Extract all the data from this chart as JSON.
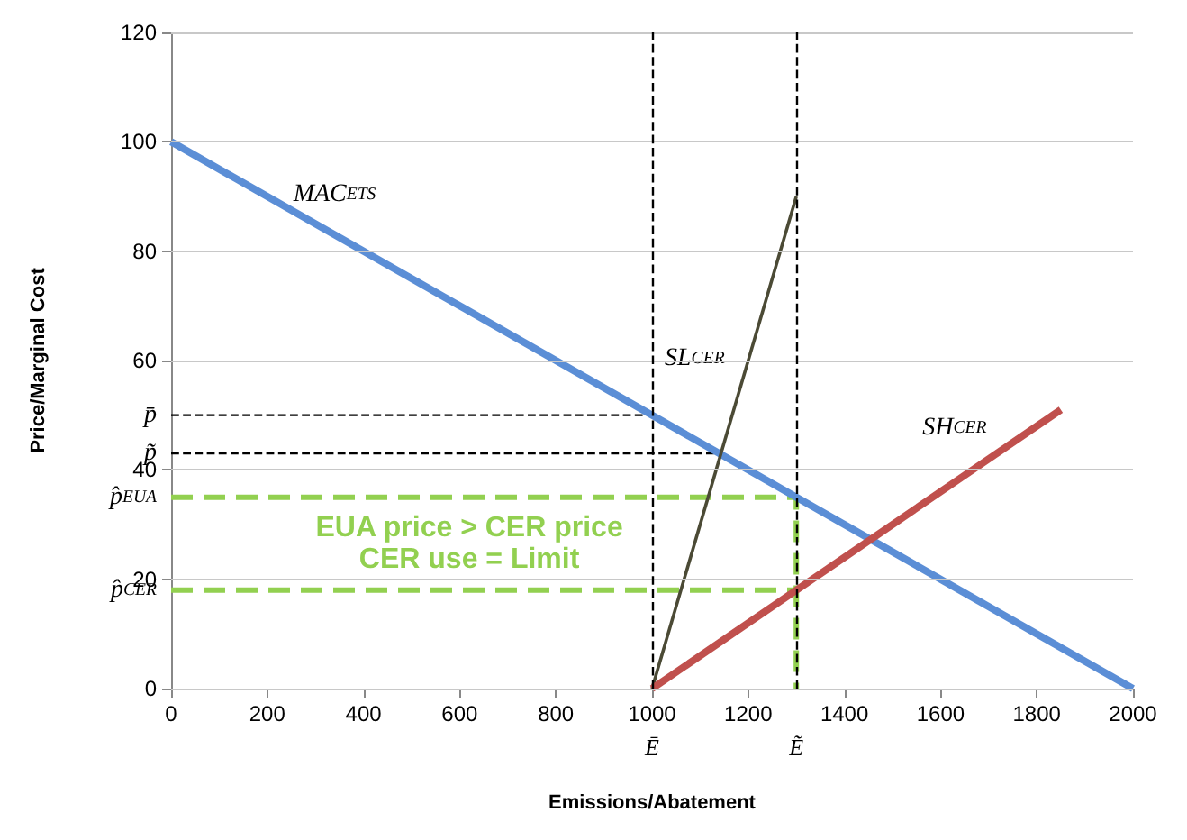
{
  "chart_data": {
    "type": "line",
    "xlabel": "Emissions/Abatement",
    "ylabel": "Price/Marginal Cost",
    "xlim": [
      0,
      2000
    ],
    "xticks": [
      0,
      200,
      400,
      600,
      800,
      1000,
      1200,
      1400,
      1600,
      1800,
      2000
    ],
    "ylim": [
      0,
      120
    ],
    "yticks": [
      0,
      20,
      40,
      60,
      80,
      100,
      120,
      {
        "value": 50,
        "label": "p̄"
      },
      {
        "value": 43,
        "label": "p̃"
      },
      {
        "value": 35,
        "label": "p̂$_{EUA}$"
      },
      {
        "value": 18,
        "label": "p̂$_{CER}$"
      }
    ],
    "grid": "y",
    "legend": false,
    "marker": "none",
    "series": [
      {
        "name": "MAC$_{ETS}$",
        "color": "#5b8ed6",
        "x": [
          0,
          2000
        ],
        "values": [
          100,
          0
        ],
        "line_style": "solid"
      },
      {
        "name": "SL$_{CER}$",
        "color": "#4b4a35",
        "x": [
          1000,
          1300
        ],
        "values": [
          0,
          90
        ],
        "line_style": "solid"
      },
      {
        "name": "SH$_{CER}$",
        "color": "#c0504d",
        "x": [
          1000,
          1850
        ],
        "values": [
          0,
          51
        ],
        "line_style": "solid"
      },
      {
        "color": "#000000",
        "x": [
          0,
          1000
        ],
        "values": [
          50,
          50
        ],
        "line_style": "dashed"
      },
      {
        "color": "#000000",
        "x": [
          0,
          1143
        ],
        "values": [
          43,
          43
        ],
        "line_style": "dashed"
      },
      {
        "color": "#92d050",
        "x": [
          0,
          1300,
          1300
        ],
        "values": [
          35,
          35,
          0
        ],
        "line_style": "dashed"
      },
      {
        "color": "#92d050",
        "x": [
          0,
          1300
        ],
        "values": [
          18,
          18
        ],
        "line_style": "dashed"
      }
    ],
    "ref_lines": [
      {
        "axis": "x",
        "value": 1000,
        "label": "Ē",
        "color": "#000000",
        "line_style": "dashed"
      },
      {
        "axis": "x",
        "value": 1300,
        "label": "Ẽ",
        "color": "#000000",
        "line_style": "dashed"
      }
    ],
    "annotations": [
      "EUA price > CER price",
      "CER use = Limit"
    ]
  }
}
